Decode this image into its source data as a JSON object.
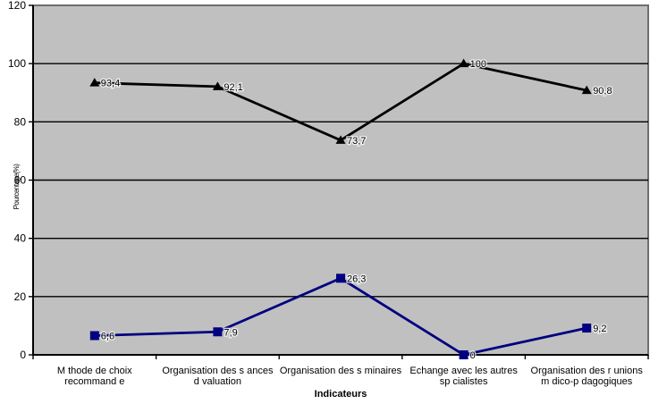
{
  "chart_data": {
    "type": "line",
    "title": "",
    "xlabel": "Indicateurs",
    "ylabel": "Pourcentage(%)",
    "ylim": [
      0,
      120
    ],
    "yticks": [
      0,
      20,
      40,
      60,
      80,
      100,
      120
    ],
    "grid": true,
    "legend": "none",
    "plot_bg": "#c0c0c0",
    "plot_border": "#6e6e6e",
    "categories": [
      [
        "M thode de choix",
        "recommand e"
      ],
      [
        "Organisation des s ances",
        "d  valuation"
      ],
      [
        "Organisation des s minaires"
      ],
      [
        "Echange avec les autres",
        "sp cialistes"
      ],
      [
        "Organisation des r unions",
        "m dico-p dagogiques"
      ]
    ],
    "series": [
      {
        "name": "series-1",
        "color": "#000000",
        "marker": "triangle",
        "values": [
          93.4,
          92.1,
          73.7,
          100,
          90.8
        ],
        "labels": [
          "93,4",
          "92,1",
          "73,7",
          "100",
          "90,8"
        ]
      },
      {
        "name": "series-2",
        "color": "#000080",
        "marker": "square",
        "values": [
          6.6,
          7.9,
          26.3,
          0,
          9.2
        ],
        "labels": [
          "6,6",
          "7,9",
          "26,3",
          "0",
          "9,2"
        ]
      }
    ]
  }
}
